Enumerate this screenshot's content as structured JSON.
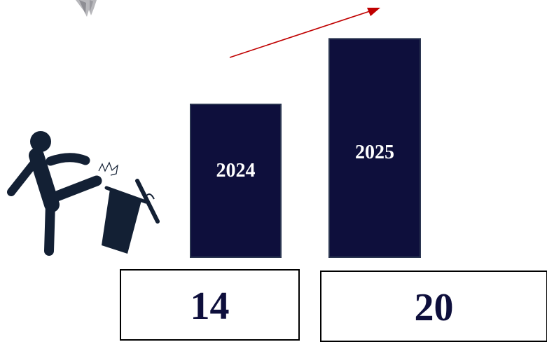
{
  "chart_data": {
    "type": "bar",
    "categories": [
      "2024",
      "2025"
    ],
    "values": [
      14,
      20
    ],
    "value_labels": [
      "14",
      "20"
    ],
    "title": "",
    "xlabel": "",
    "ylabel": "",
    "ylim": [
      0,
      21.5
    ],
    "grid": false,
    "legend": "none",
    "trend": "up"
  },
  "icons": {
    "figure": "person-kicking-trash-can-icon",
    "decoration": "gray-fan-ornament-icon",
    "trend": "red-trend-arrow-icon"
  },
  "colors": {
    "bar": "#0e0f3c",
    "bar_border": "#2a3550",
    "bar_text": "#ffffff",
    "value_text": "#0e0f3c",
    "value_box_border": "#000000",
    "trend_arrow": "#c00000",
    "figure": "#132034",
    "ornament": "#b8b8bc"
  }
}
